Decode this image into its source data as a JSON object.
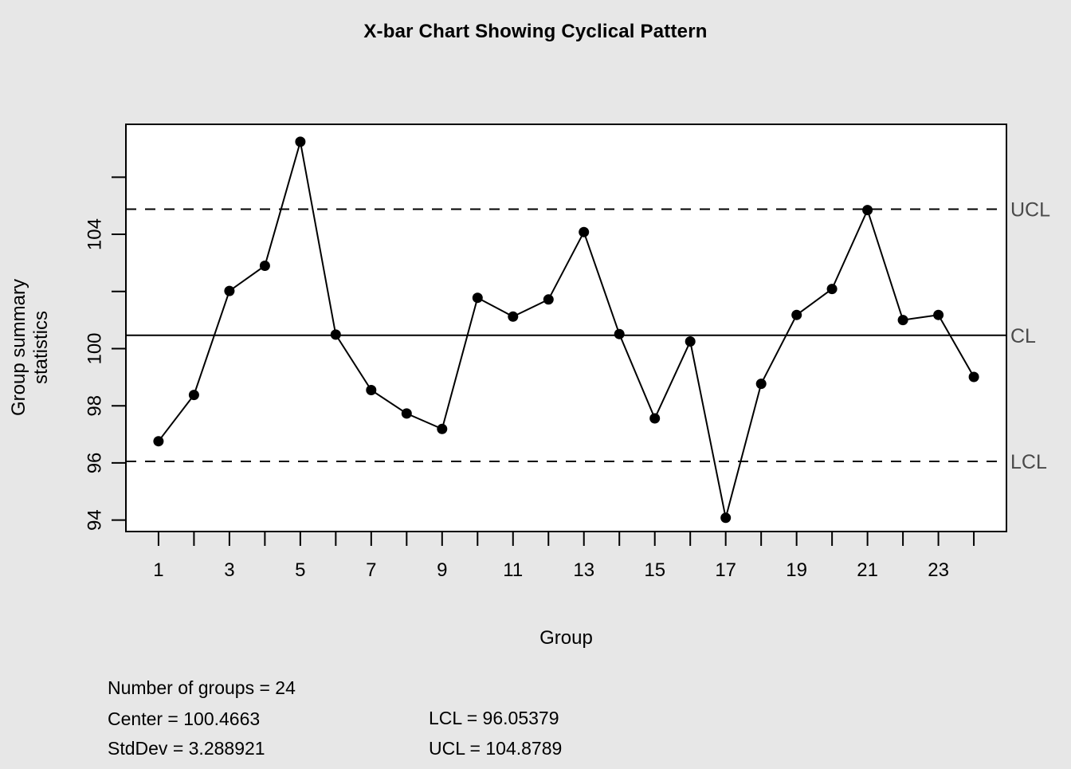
{
  "title": "X-bar Chart Showing Cyclical Pattern",
  "chart_data": {
    "type": "line",
    "subtype": "xbar-control-chart",
    "title": "X-bar Chart Showing Cyclical Pattern",
    "xlabel": "Group",
    "ylabel": "Group summary statistics",
    "x": [
      1,
      2,
      3,
      4,
      5,
      6,
      7,
      8,
      9,
      10,
      11,
      12,
      13,
      14,
      15,
      16,
      17,
      18,
      19,
      20,
      21,
      22,
      23,
      24
    ],
    "values": [
      96.76,
      98.38,
      102.02,
      102.9,
      107.24,
      100.49,
      98.55,
      97.73,
      97.19,
      101.78,
      101.12,
      101.72,
      104.08,
      100.51,
      97.56,
      100.25,
      94.08,
      98.77,
      101.18,
      102.09,
      104.85,
      101.0,
      101.18,
      99.01
    ],
    "center": 100.4663,
    "ucl": 104.8789,
    "lcl": 96.05379,
    "stddev": 3.288921,
    "number_of_groups": 24,
    "xlim": [
      0.08,
      24.92
    ],
    "ylim": [
      93.6,
      107.85
    ],
    "yticks": [
      94,
      96,
      98,
      100,
      102,
      104,
      106
    ],
    "ytick_labels": [
      "94",
      "96",
      "98",
      "100",
      "",
      "104",
      ""
    ],
    "xtick_labels": [
      "1",
      "",
      "3",
      "",
      "5",
      "",
      "7",
      "",
      "9",
      "",
      "11",
      "",
      "13",
      "",
      "15",
      "",
      "17",
      "",
      "19",
      "",
      "21",
      "",
      "23",
      ""
    ],
    "line_labels": {
      "ucl": "UCL",
      "cl": "CL",
      "lcl": "LCL"
    },
    "grid": false,
    "legend_position": "none",
    "marker": "filled-circle",
    "line_style_center": "solid",
    "line_style_limits": "dashed"
  },
  "stats_panel": {
    "number_of_groups": "Number of groups = 24",
    "center": "Center = 100.4663",
    "stddev": "StdDev = 3.288921",
    "lcl": "LCL = 96.05379",
    "ucl": "UCL = 104.8789"
  },
  "colors": {
    "background": "#e7e7e7",
    "plot_background": "#ffffff",
    "line_and_points": "#000000",
    "axis": "#000000",
    "limit_label_text": "#4a4a4a",
    "text": "#000000"
  }
}
